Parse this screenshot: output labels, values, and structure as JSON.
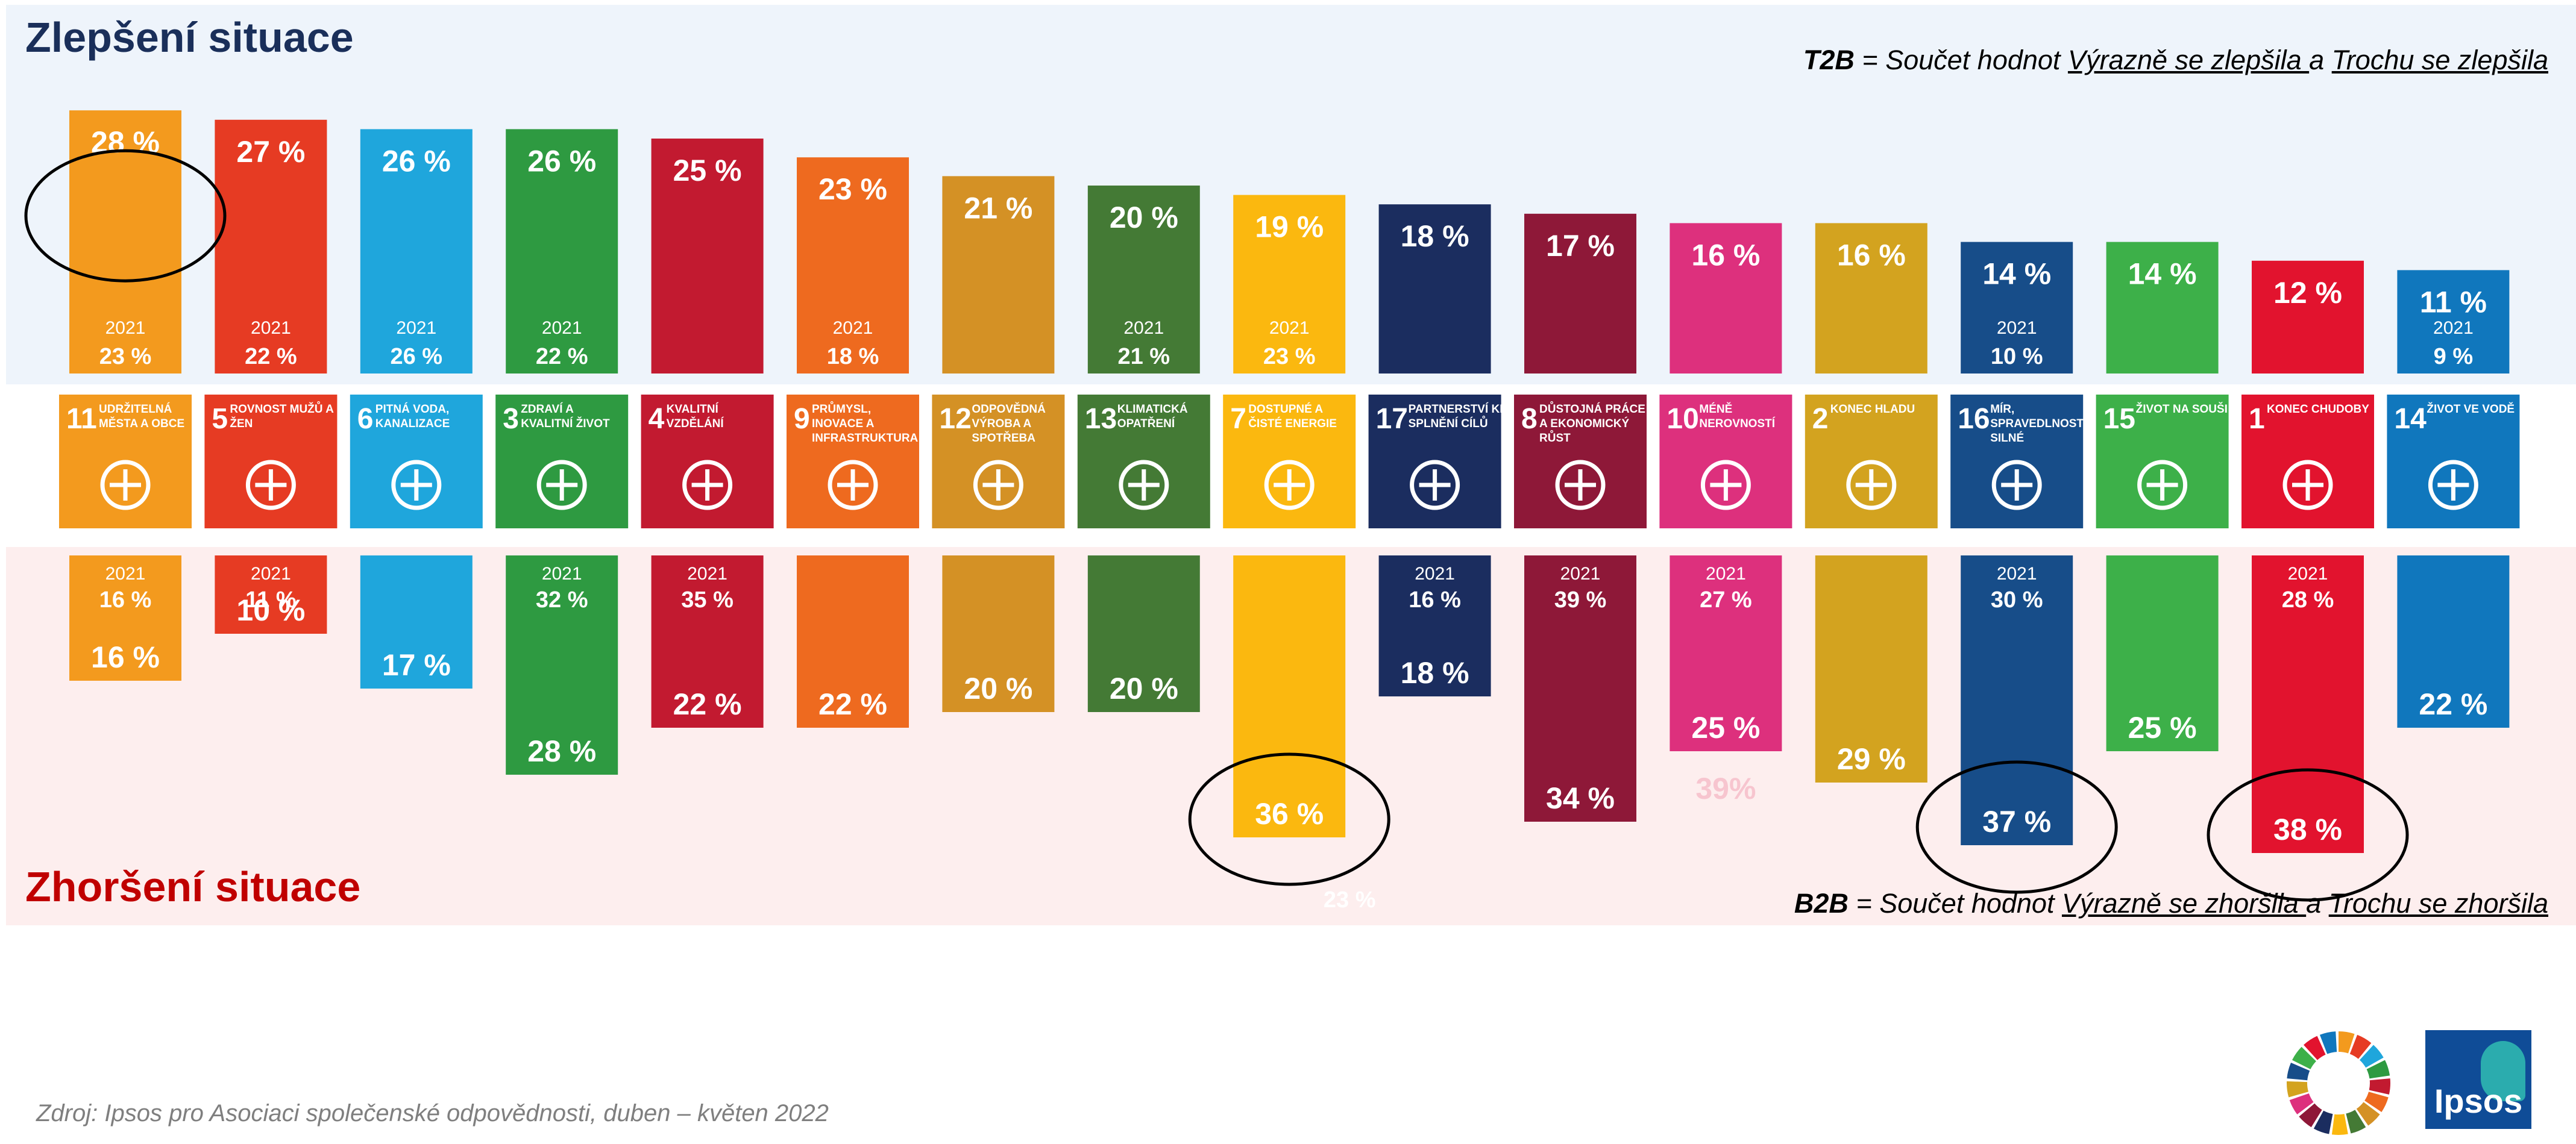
{
  "headings": {
    "top": "Zlepšení situace",
    "bottom": "Zhoršení situace"
  },
  "notes": {
    "t2b_label": "T2B",
    "t2b_eq": " = Součet hodnot ",
    "t2b_a": "Výrazně se zlepšila ",
    "t2b_and": "a ",
    "t2b_b": "Trochu se zlepšila",
    "b2b_label": "B2B",
    "b2b_eq": " = Součet hodnot ",
    "b2b_a": "Výrazně se zhoršila ",
    "b2b_and": "a ",
    "b2b_b": "Trochu se zhoršila"
  },
  "source": "Zdroj: Ipsos pro Asociaci společenské odpovědnosti, duben – květen 2022",
  "logo_text": "Ipsos",
  "year_label": "2021",
  "chart_data": {
    "type": "bar",
    "unit": "%",
    "categories": [
      {
        "num": "11",
        "label": "UDRŽITELNÁ MĚSTA A OBCE",
        "color": "#f39a1e",
        "icon": "city-buildings-icon"
      },
      {
        "num": "5",
        "label": "ROVNOST MUŽŮ A ŽEN",
        "color": "#e63b23",
        "icon": "gender-equality-icon"
      },
      {
        "num": "6",
        "label": "PITNÁ VODA, KANALIZACE",
        "color": "#1fa6dc",
        "icon": "water-drop-icon"
      },
      {
        "num": "3",
        "label": "ZDRAVÍ A KVALITNÍ ŽIVOT",
        "color": "#2e9a41",
        "icon": "heartbeat-icon"
      },
      {
        "num": "4",
        "label": "KVALITNÍ VZDĚLÁNÍ",
        "color": "#c21a30",
        "icon": "book-icon"
      },
      {
        "num": "9",
        "label": "PRŮMYSL, INOVACE A INFRASTRUKTURA",
        "color": "#ee6a1f",
        "icon": "cubes-icon"
      },
      {
        "num": "12",
        "label": "ODPOVĚDNÁ VÝROBA A SPOTŘEBA",
        "color": "#d49125",
        "icon": "infinity-icon"
      },
      {
        "num": "13",
        "label": "KLIMATICKÁ OPATŘENÍ",
        "color": "#447a35",
        "icon": "eye-globe-icon"
      },
      {
        "num": "7",
        "label": "DOSTUPNÉ A ČISTÉ ENERGIE",
        "color": "#fbb80f",
        "icon": "sun-power-icon"
      },
      {
        "num": "17",
        "label": "PARTNERSTVÍ KE SPLNĚNÍ CÍLŮ",
        "color": "#1b2d5f",
        "icon": "rings-icon"
      },
      {
        "num": "8",
        "label": "DŮSTOJNÁ PRÁCE A EKONOMICKÝ RŮST",
        "color": "#8e1838",
        "icon": "growth-chart-icon"
      },
      {
        "num": "10",
        "label": "MÉNĚ NEROVNOSTÍ",
        "color": "#dd307d",
        "icon": "equality-arrows-icon"
      },
      {
        "num": "2",
        "label": "KONEC HLADU",
        "color": "#d3a31f",
        "icon": "bowl-icon"
      },
      {
        "num": "16",
        "label": "MÍR, SPRAVEDLNOST A SILNÉ INSTITUCE",
        "color": "#174d89",
        "icon": "dove-icon"
      },
      {
        "num": "15",
        "label": "ŽIVOT NA SOUŠI",
        "color": "#3db049",
        "icon": "tree-icon"
      },
      {
        "num": "1",
        "label": "KONEC CHUDOBY",
        "color": "#e2132e",
        "icon": "family-icon"
      },
      {
        "num": "14",
        "label": "ŽIVOT VE VODĚ",
        "color": "#1077bd",
        "icon": "fish-icon"
      }
    ],
    "series": [
      {
        "name": "T2B",
        "values": [
          28,
          27,
          26,
          26,
          25,
          23,
          21,
          20,
          19,
          18,
          17,
          16,
          16,
          14,
          14,
          12,
          11
        ],
        "labels": [
          "28 %",
          "27 %",
          "26 %",
          "26 %",
          "25 %",
          "23 %",
          "21 %",
          "20 %",
          "19 %",
          "18 %",
          "17 %",
          "16 %",
          "16 %",
          "14 %",
          "14 %",
          "12 %",
          "11 %"
        ],
        "prev_2021": [
          "23 %",
          "22 %",
          "26 %",
          "22 %",
          null,
          "18 %",
          null,
          "21 %",
          "23 %",
          null,
          null,
          null,
          null,
          "10 %",
          null,
          null,
          "9 %"
        ]
      },
      {
        "name": "B2B",
        "values": [
          16,
          10,
          17,
          28,
          22,
          22,
          20,
          20,
          36,
          18,
          34,
          25,
          29,
          37,
          25,
          38,
          22
        ],
        "labels": [
          "16 %",
          "10 %",
          "17 %",
          "28 %",
          "22 %",
          "22 %",
          "20 %",
          "20 %",
          "36 %",
          "18 %",
          "34 %",
          "25 %",
          "29 %",
          "37 %",
          "25 %",
          "38 %",
          "22 %"
        ],
        "prev_2021": [
          "16 %",
          "11 %",
          null,
          "32 %",
          "35 %",
          null,
          null,
          null,
          null,
          "16 %",
          "39 %",
          "27 %",
          null,
          "30 %",
          null,
          "28 %",
          null
        ]
      }
    ],
    "highlighted": [
      {
        "series": "T2B",
        "category": "11"
      },
      {
        "series": "B2B",
        "category": "7"
      },
      {
        "series": "B2B",
        "category": "16"
      },
      {
        "series": "B2B",
        "category": "1"
      }
    ],
    "stray_labels": [
      "39%",
      "23 %"
    ]
  }
}
